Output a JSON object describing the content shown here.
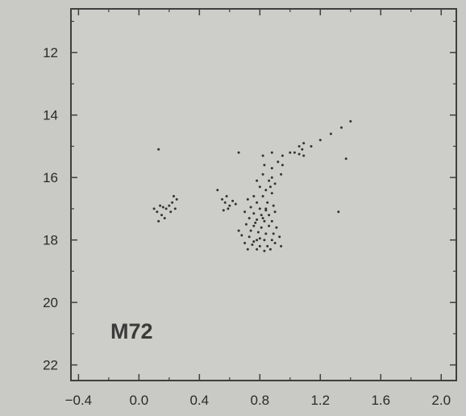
{
  "chart_data": {
    "type": "scatter",
    "title": "",
    "xlabel": "",
    "ylabel": "",
    "annotation": "M72",
    "xlim": [
      -0.45,
      2.1
    ],
    "ylim": [
      22.5,
      10.6
    ],
    "y_inverted": true,
    "grid": false,
    "x_ticks": [
      -0.4,
      0.0,
      0.4,
      0.8,
      1.2,
      1.6,
      2.0
    ],
    "x_tick_labels": [
      "−0.4",
      "0.0",
      "0.4",
      "0.8",
      "1.2",
      "1.6",
      "2.0"
    ],
    "y_ticks": [
      12,
      14,
      16,
      18,
      20,
      22
    ],
    "y_tick_labels": [
      "12",
      "14",
      "16",
      "18",
      "20",
      "22"
    ],
    "series": [
      {
        "marker_color": "#333333",
        "points": [
          [
            1.4,
            14.2
          ],
          [
            1.34,
            14.4
          ],
          [
            1.27,
            14.6
          ],
          [
            1.2,
            14.8
          ],
          [
            1.14,
            15.0
          ],
          [
            1.09,
            14.9
          ],
          [
            1.08,
            15.1
          ],
          [
            1.06,
            15.0
          ],
          [
            1.03,
            15.2
          ],
          [
            1.0,
            15.2
          ],
          [
            0.95,
            15.3
          ],
          [
            0.88,
            15.2
          ],
          [
            0.82,
            15.3
          ],
          [
            0.66,
            15.2
          ],
          [
            0.13,
            15.1
          ],
          [
            1.37,
            15.4
          ],
          [
            1.09,
            15.3
          ],
          [
            1.06,
            15.25
          ],
          [
            0.92,
            15.5
          ],
          [
            0.95,
            15.6
          ],
          [
            0.88,
            15.7
          ],
          [
            0.83,
            15.6
          ],
          [
            0.94,
            15.9
          ],
          [
            0.88,
            16.0
          ],
          [
            0.82,
            15.9
          ],
          [
            0.78,
            16.1
          ],
          [
            0.86,
            16.1
          ],
          [
            0.9,
            16.2
          ],
          [
            0.8,
            16.3
          ],
          [
            0.84,
            16.4
          ],
          [
            0.87,
            16.3
          ],
          [
            0.76,
            16.6
          ],
          [
            0.82,
            16.6
          ],
          [
            0.88,
            16.5
          ],
          [
            0.72,
            16.7
          ],
          [
            0.78,
            16.8
          ],
          [
            0.85,
            16.8
          ],
          [
            0.89,
            16.9
          ],
          [
            0.74,
            16.95
          ],
          [
            0.8,
            17.0
          ],
          [
            0.84,
            17.05
          ],
          [
            0.7,
            17.1
          ],
          [
            0.76,
            17.15
          ],
          [
            0.81,
            17.2
          ],
          [
            0.86,
            17.2
          ],
          [
            0.9,
            17.1
          ],
          [
            0.73,
            17.3
          ],
          [
            0.78,
            17.35
          ],
          [
            0.83,
            17.4
          ],
          [
            0.88,
            17.4
          ],
          [
            0.71,
            17.5
          ],
          [
            0.76,
            17.55
          ],
          [
            0.81,
            17.6
          ],
          [
            0.86,
            17.55
          ],
          [
            0.91,
            17.6
          ],
          [
            0.74,
            17.7
          ],
          [
            0.79,
            17.75
          ],
          [
            0.84,
            17.8
          ],
          [
            0.89,
            17.8
          ],
          [
            0.68,
            17.85
          ],
          [
            0.73,
            17.9
          ],
          [
            0.78,
            18.0
          ],
          [
            0.83,
            18.0
          ],
          [
            0.88,
            18.0
          ],
          [
            0.93,
            17.9
          ],
          [
            0.7,
            18.1
          ],
          [
            0.75,
            18.15
          ],
          [
            0.8,
            18.2
          ],
          [
            0.85,
            18.2
          ],
          [
            0.9,
            18.1
          ],
          [
            0.72,
            18.3
          ],
          [
            0.78,
            18.3
          ],
          [
            0.83,
            18.35
          ],
          [
            0.87,
            18.3
          ],
          [
            0.8,
            17.95
          ],
          [
            0.76,
            18.05
          ],
          [
            0.82,
            17.3
          ],
          [
            0.84,
            17.0
          ],
          [
            0.77,
            17.45
          ],
          [
            0.66,
            17.7
          ],
          [
            0.94,
            18.2
          ],
          [
            0.52,
            16.4
          ],
          [
            0.55,
            16.7
          ],
          [
            0.57,
            16.8
          ],
          [
            0.58,
            16.6
          ],
          [
            0.6,
            16.9
          ],
          [
            0.62,
            16.75
          ],
          [
            0.59,
            17.0
          ],
          [
            0.64,
            16.85
          ],
          [
            0.56,
            17.05
          ],
          [
            0.1,
            17.0
          ],
          [
            0.12,
            17.1
          ],
          [
            0.14,
            16.9
          ],
          [
            0.15,
            17.2
          ],
          [
            0.16,
            16.95
          ],
          [
            0.18,
            17.0
          ],
          [
            0.17,
            17.3
          ],
          [
            0.2,
            16.9
          ],
          [
            0.22,
            16.8
          ],
          [
            0.23,
            16.6
          ],
          [
            0.24,
            17.0
          ],
          [
            0.25,
            16.7
          ],
          [
            0.13,
            17.4
          ],
          [
            0.21,
            17.1
          ],
          [
            1.32,
            17.1
          ]
        ]
      }
    ]
  }
}
